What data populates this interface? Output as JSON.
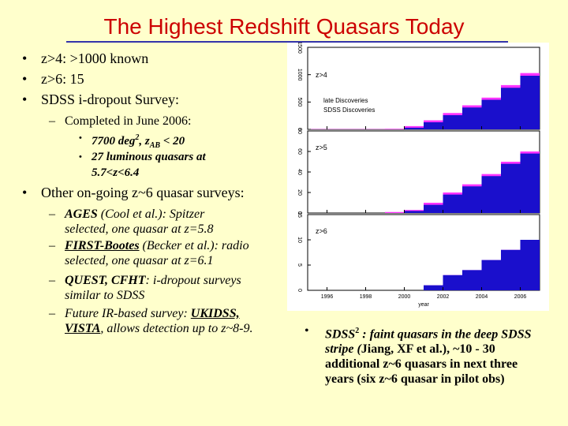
{
  "title": "The Highest Redshift Quasars Today",
  "bullets": {
    "b1": "z>4: >1000 known",
    "b2": "z>6: 15",
    "b3": "SDSS i-dropout Survey:",
    "b3_sub": "Completed in June 2006:",
    "b3_sub_a_pre": "7700 deg",
    "b3_sub_a_sup": "2",
    "b3_sub_a_mid": ", z",
    "b3_sub_a_subscript": "AB",
    "b3_sub_a_post": " < 20",
    "b3_sub_b_line1": "27 luminous quasars at",
    "b3_sub_b_line2": "5.7<z<6.4",
    "b4": "Other on-going z~6 quasar surveys:"
  },
  "surveys": [
    {
      "name": "AGES",
      "rest_line1": " (Cool et al.): Spitzer",
      "line2": "selected, one quasar at z=5.8"
    },
    {
      "name": "FIRST-Bootes",
      "rest_line1": " (Becker et al.): radio",
      "line2": "selected, one quasar at z=6.1"
    },
    {
      "name": "QUEST, CFHT",
      "rest_line1": ": i-dropout surveys",
      "line2": "similar to SDSS"
    }
  ],
  "future": {
    "line1_pre": "Future IR-based survey: ",
    "line1_u": "UKIDSS,",
    "line2_u": "VISTA",
    "line2_post": ",  allows detection up to z~8-9."
  },
  "sdss2": {
    "label": "SDSS",
    "sup": "2",
    "pre": " : faint quasars in the deep SDSS stripe (",
    "ref": "Jiang, XF et al.",
    "post": "), ~10 - 30 additional z~6 quasars in next three years (six z~6 quasar in pilot obs)"
  },
  "chart_data": {
    "type": "area",
    "x_label": "year",
    "x_ticks": [
      "1996",
      "1998",
      "2000",
      "2002",
      "2004",
      "2006"
    ],
    "x_range": [
      1995,
      2007
    ],
    "colors": {
      "sdss": "#1a0fcc",
      "late": "#ff33ff"
    },
    "legend": {
      "late": "late Discoveries",
      "sdss": "SDSS Discoveries"
    },
    "panels": [
      {
        "label": "z>4",
        "ylim": [
          0,
          1500
        ],
        "y_ticks": [
          "0",
          "500",
          "1000",
          "1500"
        ],
        "x": [
          1995,
          1999,
          2000,
          2001,
          2002,
          2003,
          2004,
          2005,
          2006,
          2007
        ],
        "sdss": [
          0,
          0,
          30,
          130,
          260,
          400,
          540,
          760,
          980,
          1160
        ],
        "total": [
          5,
          10,
          60,
          165,
          300,
          440,
          580,
          810,
          1030,
          1215
        ]
      },
      {
        "label": "z>5",
        "ylim": [
          0,
          80
        ],
        "y_ticks": [
          "0",
          "20",
          "40",
          "60",
          "80"
        ],
        "x": [
          1995,
          1999,
          2000,
          2001,
          2002,
          2003,
          2004,
          2005,
          2006,
          2007
        ],
        "sdss": [
          0,
          0,
          2,
          8,
          18,
          26,
          36,
          48,
          58,
          68
        ],
        "total": [
          0,
          1,
          3,
          10,
          20,
          28,
          38,
          50,
          60,
          70
        ]
      },
      {
        "label": "z>6",
        "ylim": [
          0,
          15
        ],
        "y_ticks": [
          "0",
          "5",
          "10",
          "15"
        ],
        "x": [
          1995,
          2000,
          2001,
          2002,
          2003,
          2004,
          2005,
          2006,
          2007
        ],
        "sdss": [
          0,
          0,
          1,
          3,
          4,
          6,
          8,
          10,
          12
        ],
        "total": [
          0,
          0,
          1,
          3,
          4,
          6,
          8,
          10,
          12
        ]
      }
    ]
  }
}
